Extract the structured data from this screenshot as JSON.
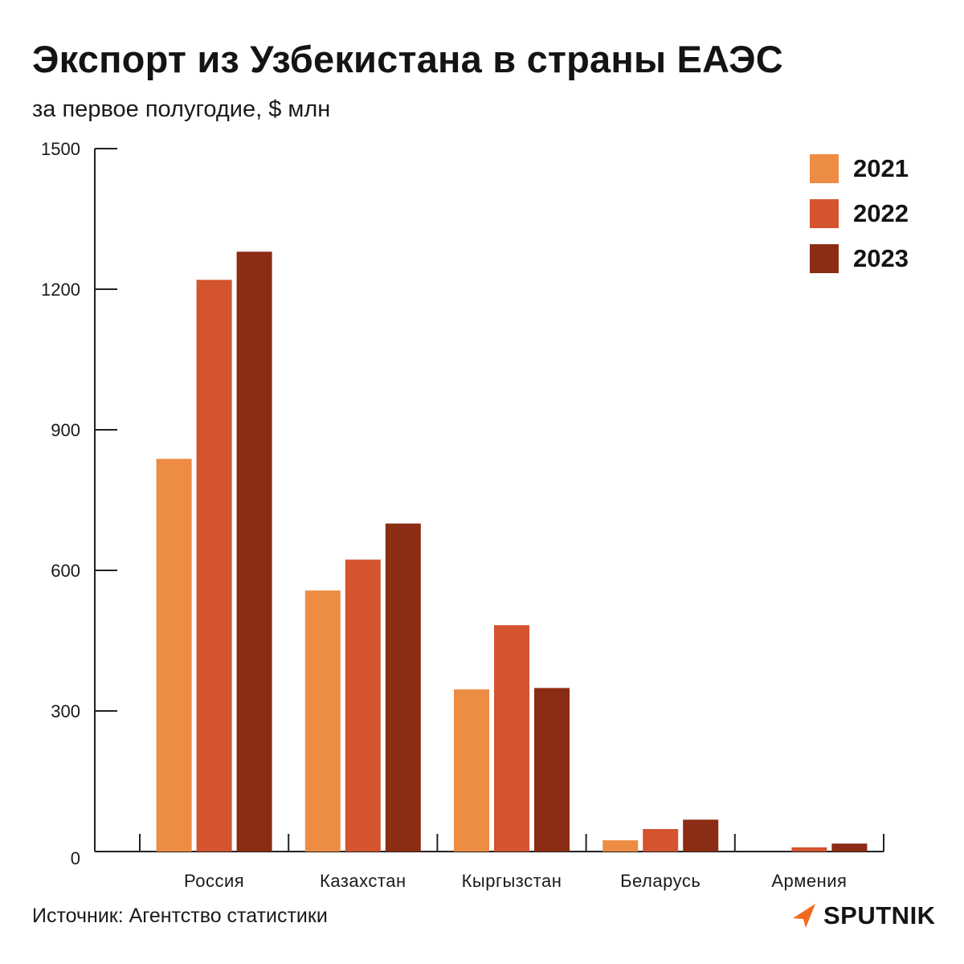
{
  "title": "Экспорт из Узбекистана в страны ЕАЭС",
  "subtitle": "за первое полугодие, $ млн",
  "source": "Источник: Агентство статистики",
  "brand": "SPUTNIK",
  "colors": {
    "2021": "#ED8C43",
    "2022": "#D3542F",
    "2023": "#8B2C14",
    "axis": "#222222",
    "brand_accent": "#F26A21"
  },
  "legend": [
    {
      "label": "2021",
      "color": "#ED8C43"
    },
    {
      "label": "2022",
      "color": "#D3542F"
    },
    {
      "label": "2023",
      "color": "#8B2C14"
    }
  ],
  "chart_data": {
    "type": "bar",
    "title": "Экспорт из Узбекистана в страны ЕАЭС",
    "subtitle": "за первое полугодие, $ млн",
    "xlabel": "",
    "ylabel": "",
    "categories": [
      "Россия",
      "Казахстан",
      "Кыргызстан",
      "Беларусь",
      "Армения"
    ],
    "series": [
      {
        "name": "2021",
        "values": [
          838,
          557,
          346,
          24,
          0
        ]
      },
      {
        "name": "2022",
        "values": [
          1220,
          623,
          483,
          48,
          9
        ]
      },
      {
        "name": "2023",
        "values": [
          1280,
          700,
          349,
          68,
          17
        ]
      }
    ],
    "ylim": [
      0,
      1500
    ],
    "yticks": [
      0,
      300,
      600,
      900,
      1200,
      1500
    ],
    "grid": false,
    "legend_position": "top-right"
  }
}
